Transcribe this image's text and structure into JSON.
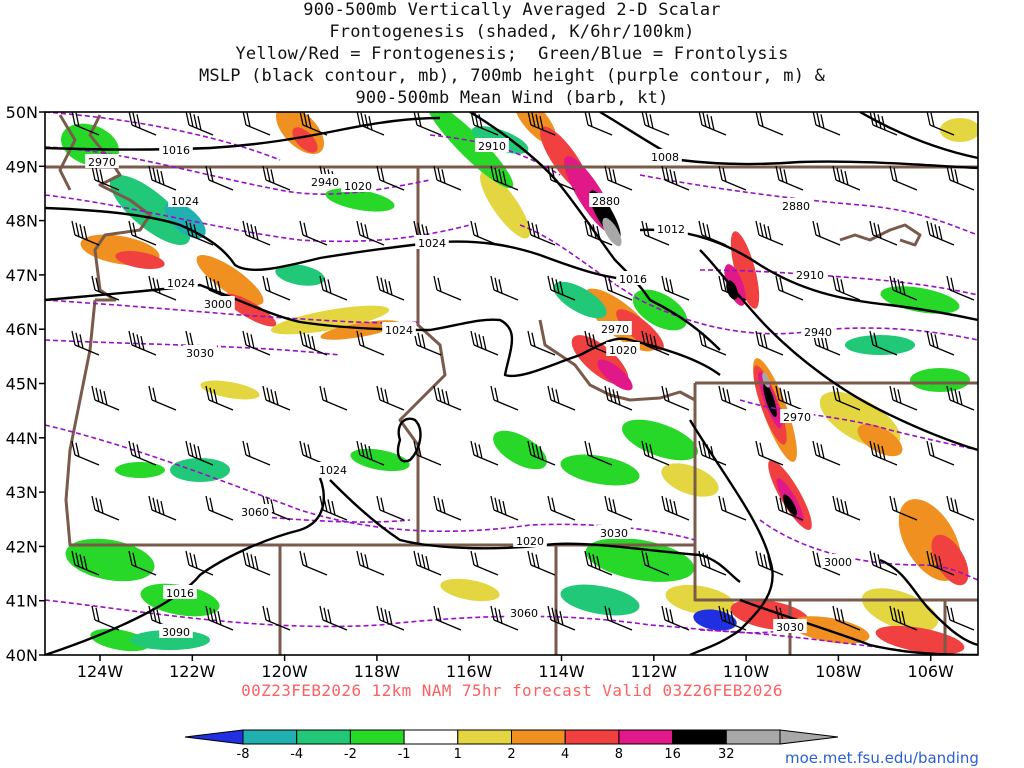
{
  "title_lines": [
    "900-500mb Vertically Averaged 2-D Scalar",
    "Frontogenesis (shaded, K/6hr/100km)",
    "Yellow/Red = Frontogenesis;  Green/Blue = Frontolysis",
    "MSLP (black contour, mb), 700mb height (purple contour, m) &",
    "900-500mb Mean Wind (barb, kt)"
  ],
  "footer": "00Z23FEB2026 12km NAM 75hr forecast Valid 03Z26FEB2026",
  "credit": "moe.met.fsu.edu/banding",
  "map": {
    "lat_labels": [
      "50N",
      "49N",
      "48N",
      "47N",
      "46N",
      "45N",
      "44N",
      "43N",
      "42N",
      "41N",
      "40N"
    ],
    "lon_labels": [
      "124W",
      "122W",
      "120W",
      "118W",
      "116W",
      "114W",
      "112W",
      "110W",
      "108W",
      "106W"
    ]
  },
  "mslp_labels": [
    "1016",
    "1008",
    "1012",
    "1016",
    "1020",
    "1024",
    "1024",
    "1020",
    "1024",
    "1024",
    "1024",
    "1020",
    "1016"
  ],
  "height_labels": [
    "2970",
    "2940",
    "2910",
    "2880",
    "2880",
    "2910",
    "2940",
    "2970",
    "3000",
    "3030",
    "2970",
    "3060",
    "3030",
    "3060",
    "3000",
    "3090",
    "3030"
  ],
  "colorbar": {
    "labels": [
      "-8",
      "-4",
      "-2",
      "-1",
      "1",
      "2",
      "4",
      "8",
      "16",
      "32"
    ],
    "colors": [
      "#2030e0",
      "#20b0b0",
      "#20c878",
      "#28d828",
      "#ffffff",
      "#e4d640",
      "#f09020",
      "#f04040",
      "#e01888",
      "#000000",
      "#a8a8a8"
    ]
  },
  "colors": {
    "mslp": "#000000",
    "height": "#9a10c8",
    "border": "#7a5a4a",
    "footer": "#ff6060",
    "credit": "#2a5fd6"
  }
}
